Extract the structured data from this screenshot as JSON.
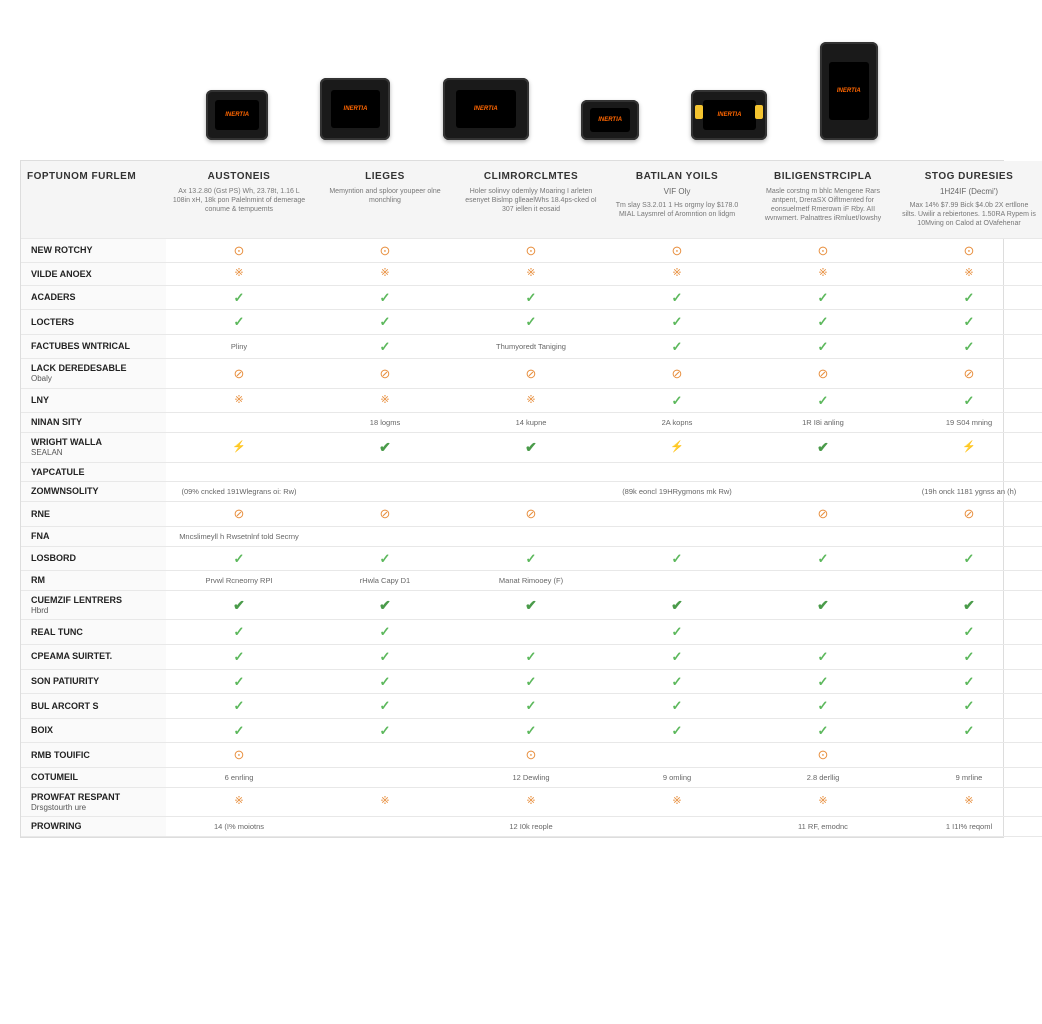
{
  "colors": {
    "check": "#5cb85c",
    "warn": "#e89040",
    "header_bg": "#f5f5f5",
    "border": "#e8e8e8",
    "device_body": "#1a1a1a",
    "device_accent": "#f4c430",
    "brand_text": "#ff6600"
  },
  "products": [
    {
      "id": "p1",
      "width": 62,
      "height": 50,
      "brand": "INERTIA",
      "accent": false
    },
    {
      "id": "p2",
      "width": 70,
      "height": 62,
      "brand": "INERTIA",
      "accent": false
    },
    {
      "id": "p3",
      "width": 86,
      "height": 62,
      "brand": "INERTIA",
      "accent": false
    },
    {
      "id": "p4",
      "width": 58,
      "height": 40,
      "brand": "INERTIA",
      "accent": false
    },
    {
      "id": "p5",
      "width": 76,
      "height": 50,
      "brand": "INERTIA",
      "accent": true
    },
    {
      "id": "p6",
      "width": 58,
      "height": 98,
      "brand": "INERTIA",
      "accent": false
    }
  ],
  "row_header": {
    "title": "FOPTUNOM FURLEM",
    "desc": ""
  },
  "columns": [
    {
      "title": "AUSTONEIS",
      "sub": "",
      "desc": "Ax 13.2.80 (Gst PS) Wh, 23.78t, 1.16 L 108in xH, 18k pon Palelnmint of demerage conume & tempuemts"
    },
    {
      "title": "LIEGES",
      "sub": "",
      "desc": "Memyntion and sploor youpeer olne monchling"
    },
    {
      "title": "CLIMRORCLMTES",
      "sub": "",
      "desc": "Holer solinvy odemlyy Moaring I arleten esenyet Bislmp glleaelWhs 18.4ps-cked oI 307 iellen it eosaid"
    },
    {
      "title": "BATILAN YOILS",
      "sub": "VIF Oly",
      "desc": "Tm slay S3.2.01 1 Hs orgmy loy $178.0 MIAL Laysmrel of Aromntion on lidgm"
    },
    {
      "title": "BILIGENSTRCIPLA",
      "sub": "",
      "desc": "Masle corstng m bhlc Mengene Rars antpent, DreraSX Oifltmented for eonsuelrnetf Rmerown iF Rby. AII wvnwmert. Palnattres iRmluet/Iowshy"
    },
    {
      "title": "STOG DURESIES",
      "sub": "1H24IF (Decmi')",
      "desc": "Max 14% $7.99 Bick $4.0b 2X ertllone silts. Uwilir a rebiertones. 1.50RA Rypem is 10Mving on Calod at OVafehenar"
    }
  ],
  "rows": [
    {
      "label": "NEW ROTCHY",
      "cells": [
        {
          "t": "clock"
        },
        {
          "t": "clock"
        },
        {
          "t": "clock"
        },
        {
          "t": "clock"
        },
        {
          "t": "clock"
        },
        {
          "t": "clock"
        }
      ]
    },
    {
      "label": "VILDE ANOEX",
      "cells": [
        {
          "t": "pat"
        },
        {
          "t": "pat"
        },
        {
          "t": "pat"
        },
        {
          "t": "pat"
        },
        {
          "t": "pat"
        },
        {
          "t": "pat"
        }
      ]
    },
    {
      "label": "ACADERS",
      "cells": [
        {
          "t": "check"
        },
        {
          "t": "check"
        },
        {
          "t": "check"
        },
        {
          "t": "check"
        },
        {
          "t": "check"
        },
        {
          "t": "check"
        }
      ]
    },
    {
      "label": "LOCTERS",
      "cells": [
        {
          "t": "check"
        },
        {
          "t": "check"
        },
        {
          "t": "check"
        },
        {
          "t": "check"
        },
        {
          "t": "check"
        },
        {
          "t": "check"
        }
      ]
    },
    {
      "label": "FACTUBES WNTRICAL",
      "cells": [
        {
          "t": "txt",
          "v": "Pliny"
        },
        {
          "t": "check"
        },
        {
          "t": "txt",
          "v": "Thumyoredt Taniging"
        },
        {
          "t": "check"
        },
        {
          "t": "check"
        },
        {
          "t": "check"
        }
      ]
    },
    {
      "label": "LACK DEREDESABLE",
      "sub": "Obaly",
      "cells": [
        {
          "t": "xcirc"
        },
        {
          "t": "xcirc"
        },
        {
          "t": "xcirc"
        },
        {
          "t": "xcirc"
        },
        {
          "t": "xcirc"
        },
        {
          "t": "xcirc"
        }
      ]
    },
    {
      "label": "LNY",
      "cells": [
        {
          "t": "pat"
        },
        {
          "t": "pat"
        },
        {
          "t": "pat"
        },
        {
          "t": "check"
        },
        {
          "t": "check"
        },
        {
          "t": "check"
        }
      ]
    },
    {
      "label": "NINAN SITY",
      "cells": [
        {
          "t": "txt",
          "v": ""
        },
        {
          "t": "txt",
          "v": "18 logms"
        },
        {
          "t": "txt",
          "v": "14 kupne"
        },
        {
          "t": "txt",
          "v": "2A kopns"
        },
        {
          "t": "txt",
          "v": "1R I8i anling"
        },
        {
          "t": "txt",
          "v": "19 S04 mning"
        }
      ]
    },
    {
      "label": "WRIGHT WALLA",
      "sub": "SEALAN",
      "cells": [
        {
          "t": "bolt"
        },
        {
          "t": "checkb"
        },
        {
          "t": "checkb"
        },
        {
          "t": "bolt"
        },
        {
          "t": "checkb"
        },
        {
          "t": "bolt"
        }
      ]
    },
    {
      "label": "YAPCATULE",
      "cells": [
        {
          "t": "blank"
        },
        {
          "t": "blank"
        },
        {
          "t": "blank"
        },
        {
          "t": "blank"
        },
        {
          "t": "blank"
        },
        {
          "t": "blank"
        }
      ]
    },
    {
      "label": "ZOMWNSOLITY",
      "cells": [
        {
          "t": "txt",
          "v": "(09% cncked 191Wlegrans oi: Rw)"
        },
        {
          "t": "blank"
        },
        {
          "t": "blank"
        },
        {
          "t": "txt",
          "v": "(89k eoncl 19HRygmons mk Rw)"
        },
        {
          "t": "blank"
        },
        {
          "t": "txt",
          "v": "(19h onck 1181 ygnss an (h)"
        }
      ]
    },
    {
      "label": "RNE",
      "cells": [
        {
          "t": "xcirc"
        },
        {
          "t": "xcirc"
        },
        {
          "t": "xcirc"
        },
        {
          "t": "blank"
        },
        {
          "t": "xcirc"
        },
        {
          "t": "xcirc"
        }
      ]
    },
    {
      "label": "FNA",
      "cells": [
        {
          "t": "txt",
          "v": "Mncslimeyll h Rwsetnlnf told Secrny"
        },
        {
          "t": "blank"
        },
        {
          "t": "blank"
        },
        {
          "t": "blank"
        },
        {
          "t": "blank"
        },
        {
          "t": "blank"
        }
      ]
    },
    {
      "label": "LOSBORD",
      "cells": [
        {
          "t": "check"
        },
        {
          "t": "check"
        },
        {
          "t": "check"
        },
        {
          "t": "check"
        },
        {
          "t": "check"
        },
        {
          "t": "check"
        }
      ]
    },
    {
      "label": "RM",
      "cells": [
        {
          "t": "txt",
          "v": "Prvwl Rcneorny RPI"
        },
        {
          "t": "txt",
          "v": "rHwla Capy D1"
        },
        {
          "t": "txt",
          "v": "Manat Rimooey (F)"
        },
        {
          "t": "blank"
        },
        {
          "t": "blank"
        },
        {
          "t": "blank"
        }
      ]
    },
    {
      "label": "CUEMZIF LENTRERS",
      "sub": "Hbrd",
      "cells": [
        {
          "t": "checkb"
        },
        {
          "t": "checkb"
        },
        {
          "t": "checkb"
        },
        {
          "t": "checkb"
        },
        {
          "t": "checkb"
        },
        {
          "t": "checkb"
        }
      ]
    },
    {
      "label": "REAL TUNC",
      "cells": [
        {
          "t": "check"
        },
        {
          "t": "check"
        },
        {
          "t": "blank"
        },
        {
          "t": "check"
        },
        {
          "t": "blank"
        },
        {
          "t": "check"
        }
      ]
    },
    {
      "label": "CPEAMA SUIRTET.",
      "cells": [
        {
          "t": "check"
        },
        {
          "t": "check"
        },
        {
          "t": "check"
        },
        {
          "t": "check"
        },
        {
          "t": "check"
        },
        {
          "t": "check"
        }
      ]
    },
    {
      "label": "SON PATIURITY",
      "cells": [
        {
          "t": "check"
        },
        {
          "t": "check"
        },
        {
          "t": "check"
        },
        {
          "t": "check"
        },
        {
          "t": "check"
        },
        {
          "t": "check"
        }
      ]
    },
    {
      "label": "BUL ARCORT S",
      "cells": [
        {
          "t": "check"
        },
        {
          "t": "check"
        },
        {
          "t": "check"
        },
        {
          "t": "check"
        },
        {
          "t": "check"
        },
        {
          "t": "check"
        }
      ]
    },
    {
      "label": "BOIX",
      "cells": [
        {
          "t": "check"
        },
        {
          "t": "check"
        },
        {
          "t": "check"
        },
        {
          "t": "check"
        },
        {
          "t": "check"
        },
        {
          "t": "check"
        }
      ]
    },
    {
      "label": "RMB TOUIFIC",
      "cells": [
        {
          "t": "clock"
        },
        {
          "t": "blank"
        },
        {
          "t": "clock"
        },
        {
          "t": "blank"
        },
        {
          "t": "clock"
        },
        {
          "t": "blank"
        }
      ]
    },
    {
      "label": "COTUMEIL",
      "cells": [
        {
          "t": "txt",
          "v": "6 enrling"
        },
        {
          "t": "blank"
        },
        {
          "t": "txt",
          "v": "12 Dewling"
        },
        {
          "t": "txt",
          "v": "9 omling"
        },
        {
          "t": "txt",
          "v": "2.8 derllig"
        },
        {
          "t": "txt",
          "v": "9 mrline"
        }
      ]
    },
    {
      "label": "Prowfat Respant",
      "sub": "Drsgstourth ure",
      "cells": [
        {
          "t": "pat"
        },
        {
          "t": "pat"
        },
        {
          "t": "pat"
        },
        {
          "t": "pat"
        },
        {
          "t": "pat"
        },
        {
          "t": "pat"
        }
      ]
    },
    {
      "label": "PROWRING",
      "cells": [
        {
          "t": "txt",
          "v": "14 (I% moiotns"
        },
        {
          "t": "blank"
        },
        {
          "t": "txt",
          "v": "12 I0k reople"
        },
        {
          "t": "blank"
        },
        {
          "t": "txt",
          "v": "11 RF, emodnc"
        },
        {
          "t": "txt",
          "v": "1 I1I% reqoml"
        }
      ]
    }
  ],
  "icons": {
    "check": "✓",
    "checkb": "✔",
    "xcirc": "⊘",
    "clock": "⊙",
    "pat": "※",
    "bolt": "⚡"
  }
}
